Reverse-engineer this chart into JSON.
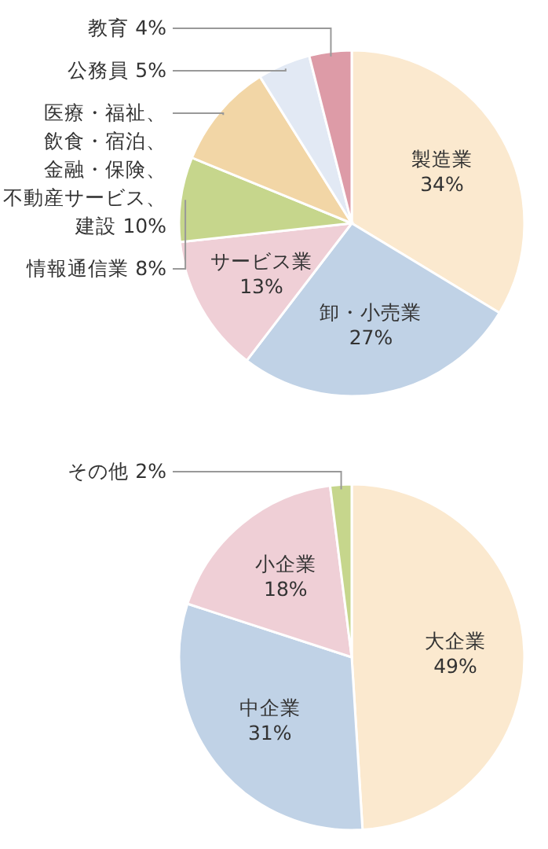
{
  "chart_data": [
    {
      "type": "pie",
      "categories": [
        "製造業",
        "卸・小売業",
        "サービス業",
        "情報通信業",
        "医療・福祉、飲食・宿泊、金融・保険、不動産サービス、建設",
        "公務員",
        "教育"
      ],
      "values": [
        34,
        27,
        13,
        8,
        10,
        5,
        4
      ],
      "value_labels": [
        "34%",
        "27%",
        "13%",
        "8%",
        "10%",
        "5%",
        "4%"
      ],
      "colors": [
        "#fbe9cf",
        "#c0d2e6",
        "#efcfd6",
        "#c6d68c",
        "#f2d6a6",
        "#e2e9f4",
        "#dd9ba7"
      ]
    },
    {
      "type": "pie",
      "categories": [
        "大企業",
        "中企業",
        "小企業",
        "その他"
      ],
      "values": [
        49,
        31,
        18,
        2
      ],
      "value_labels": [
        "49%",
        "31%",
        "18%",
        "2%"
      ],
      "colors": [
        "#fbe9cf",
        "#c0d2e6",
        "#efcfd6",
        "#c6d68c"
      ]
    }
  ]
}
